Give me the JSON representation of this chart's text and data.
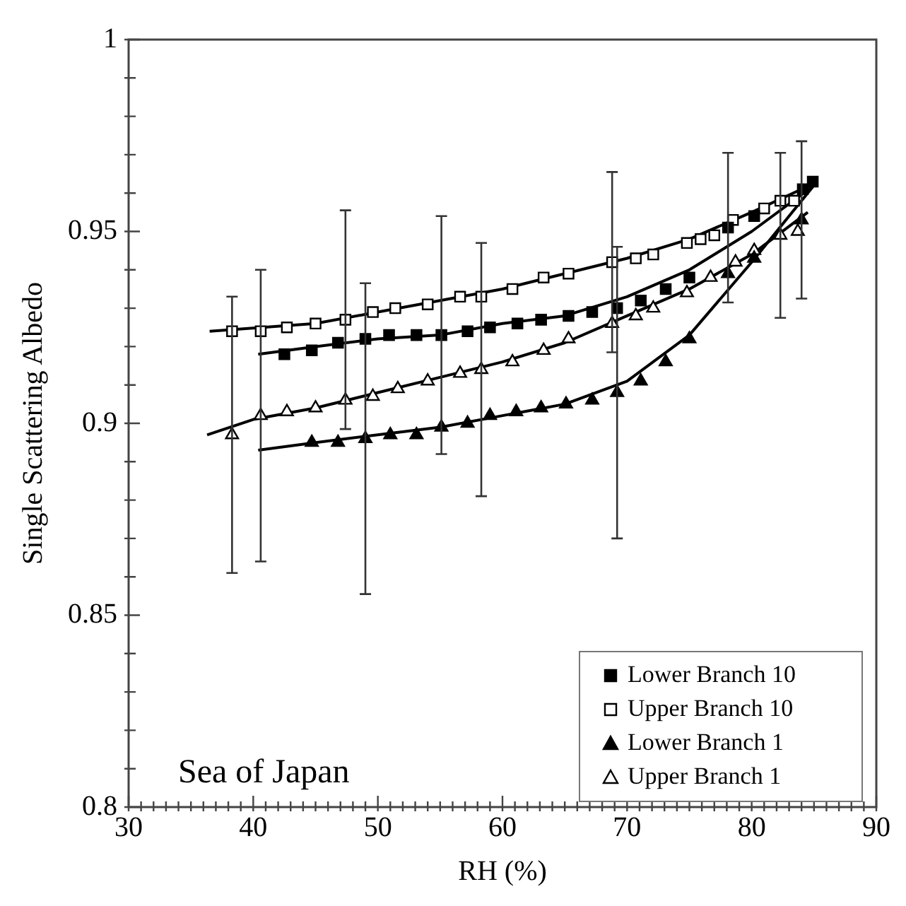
{
  "chart_data": {
    "type": "scatter",
    "xlabel": "RH (%)",
    "ylabel": "Single Scattering Albedo",
    "annotations": [
      "Sea of Japan"
    ],
    "xlim": [
      30,
      90
    ],
    "ylim": [
      0.8,
      1
    ],
    "xticks": [
      30,
      {
        "value": 31,
        "label": null
      },
      {
        "value": 32,
        "label": null
      },
      {
        "value": 33,
        "label": null
      },
      {
        "value": 34,
        "label": null
      },
      {
        "value": 35,
        "label": null
      },
      {
        "value": 36,
        "label": null
      },
      {
        "value": 37,
        "label": null
      },
      {
        "value": 38,
        "label": null
      },
      {
        "value": 39,
        "label": null
      },
      40,
      {
        "value": 41,
        "label": null
      },
      {
        "value": 42,
        "label": null
      },
      {
        "value": 43,
        "label": null
      },
      {
        "value": 44,
        "label": null
      },
      {
        "value": 45,
        "label": null
      },
      {
        "value": 46,
        "label": null
      },
      {
        "value": 47,
        "label": null
      },
      {
        "value": 48,
        "label": null
      },
      {
        "value": 49,
        "label": null
      },
      50,
      {
        "value": 51,
        "label": null
      },
      {
        "value": 52,
        "label": null
      },
      {
        "value": 53,
        "label": null
      },
      {
        "value": 54,
        "label": null
      },
      {
        "value": 55,
        "label": null
      },
      {
        "value": 56,
        "label": null
      },
      {
        "value": 57,
        "label": null
      },
      {
        "value": 58,
        "label": null
      },
      {
        "value": 59,
        "label": null
      },
      60,
      {
        "value": 61,
        "label": null
      },
      {
        "value": 62,
        "label": null
      },
      {
        "value": 63,
        "label": null
      },
      {
        "value": 64,
        "label": null
      },
      {
        "value": 65,
        "label": null
      },
      {
        "value": 66,
        "label": null
      },
      {
        "value": 67,
        "label": null
      },
      {
        "value": 68,
        "label": null
      },
      {
        "value": 69,
        "label": null
      },
      70,
      {
        "value": 71,
        "label": null
      },
      {
        "value": 72,
        "label": null
      },
      {
        "value": 73,
        "label": null
      },
      {
        "value": 74,
        "label": null
      },
      {
        "value": 75,
        "label": null
      },
      {
        "value": 76,
        "label": null
      },
      {
        "value": 77,
        "label": null
      },
      {
        "value": 78,
        "label": null
      },
      {
        "value": 79,
        "label": null
      },
      80,
      {
        "value": 81,
        "label": null
      },
      {
        "value": 82,
        "label": null
      },
      {
        "value": 83,
        "label": null
      },
      {
        "value": 84,
        "label": null
      },
      {
        "value": 85,
        "label": null
      },
      {
        "value": 86,
        "label": null
      },
      {
        "value": 87,
        "label": null
      },
      {
        "value": 88,
        "label": null
      },
      {
        "value": 89,
        "label": null
      },
      90
    ],
    "yticks": [
      0.8,
      {
        "value": 0.81,
        "label": null
      },
      {
        "value": 0.82,
        "label": null
      },
      {
        "value": 0.83,
        "label": null
      },
      {
        "value": 0.84,
        "label": null
      },
      0.85,
      {
        "value": 0.86,
        "label": null
      },
      {
        "value": 0.87,
        "label": null
      },
      {
        "value": 0.88,
        "label": null
      },
      {
        "value": 0.89,
        "label": null
      },
      0.9,
      {
        "value": 0.91,
        "label": null
      },
      {
        "value": 0.92,
        "label": null
      },
      {
        "value": 0.93,
        "label": null
      },
      {
        "value": 0.94,
        "label": null
      },
      0.95,
      {
        "value": 0.96,
        "label": null
      },
      {
        "value": 0.97,
        "label": null
      },
      {
        "value": 0.98,
        "label": null
      },
      {
        "value": 0.99,
        "label": null
      },
      1
    ],
    "grid": false,
    "legend": "bottom right",
    "series": [
      {
        "name": "Lower Branch 10",
        "color": "#000000",
        "marker": "square",
        "x": [
          42.5,
          44.7,
          46.8,
          49.0,
          50.9,
          53.1,
          55.1,
          57.2,
          59.0,
          61.2,
          63.1,
          65.3,
          67.2,
          69.2,
          71.1,
          73.1,
          75.0,
          78.1,
          80.2,
          84.1,
          84.9
        ],
        "values": [
          0.918,
          0.919,
          0.921,
          0.922,
          0.923,
          0.923,
          0.923,
          0.924,
          0.925,
          0.926,
          0.927,
          0.928,
          0.929,
          0.93,
          0.932,
          0.935,
          0.938,
          0.951,
          0.954,
          0.961,
          0.963
        ],
        "errors": [
          null,
          null,
          null,
          null,
          null,
          null,
          0.031,
          null,
          null,
          null,
          null,
          null,
          null,
          null,
          null,
          null,
          null,
          0.0195,
          null,
          null,
          null
        ]
      },
      {
        "name": "Upper Branch 10",
        "color": "#ffffff",
        "marker": "square",
        "x": [
          38.3,
          40.6,
          42.7,
          45.0,
          47.4,
          49.6,
          51.4,
          54.0,
          56.6,
          58.3,
          60.8,
          63.3,
          65.3,
          68.8,
          70.7,
          72.1,
          74.8,
          75.9,
          77.0,
          78.5,
          81.0,
          82.3,
          83.4
        ],
        "values": [
          0.924,
          0.924,
          0.925,
          0.926,
          0.927,
          0.929,
          0.93,
          0.931,
          0.933,
          0.933,
          0.935,
          0.938,
          0.939,
          0.942,
          0.943,
          0.944,
          0.947,
          0.948,
          0.949,
          0.953,
          0.956,
          0.958,
          0.958
        ],
        "errors": [
          null,
          null,
          null,
          null,
          0.0285,
          null,
          null,
          null,
          null,
          null,
          null,
          null,
          null,
          0.0235,
          null,
          null,
          null,
          null,
          null,
          null,
          null,
          null,
          null
        ]
      },
      {
        "name": "Lower Branch 1",
        "color": "#000000",
        "marker": "triangle",
        "x": [
          44.7,
          46.8,
          49.0,
          51.0,
          53.1,
          55.1,
          57.2,
          59.0,
          61.1,
          63.1,
          65.1,
          67.2,
          69.2,
          71.1,
          73.1,
          75.0,
          78.1,
          80.2,
          84.0
        ],
        "values": [
          0.895,
          0.895,
          0.896,
          0.897,
          0.897,
          0.899,
          0.9,
          0.902,
          0.903,
          0.904,
          0.905,
          0.906,
          0.908,
          0.911,
          0.916,
          0.922,
          0.939,
          0.943,
          0.953
        ],
        "errors": [
          null,
          null,
          0.0405,
          null,
          null,
          null,
          null,
          null,
          null,
          null,
          null,
          null,
          0.038,
          null,
          null,
          null,
          null,
          null,
          0.0205
        ]
      },
      {
        "name": "Upper Branch 1",
        "color": "#ffffff",
        "marker": "triangle",
        "x": [
          38.3,
          40.6,
          42.7,
          45.0,
          47.4,
          49.6,
          51.6,
          54.0,
          56.6,
          58.3,
          60.8,
          63.3,
          65.3,
          68.8,
          70.7,
          72.1,
          74.8,
          76.7,
          78.7,
          80.2,
          82.3,
          83.7
        ],
        "values": [
          0.897,
          0.902,
          0.903,
          0.904,
          0.906,
          0.907,
          0.909,
          0.911,
          0.913,
          0.914,
          0.916,
          0.919,
          0.922,
          0.926,
          0.928,
          0.93,
          0.934,
          0.938,
          0.942,
          0.945,
          0.949,
          0.95
        ],
        "errors": [
          0.036,
          0.038,
          null,
          null,
          null,
          null,
          null,
          null,
          null,
          0.033,
          null,
          null,
          null,
          null,
          null,
          null,
          null,
          null,
          null,
          null,
          0.0215,
          null
        ]
      },
      {
        "type": "line",
        "color": "#000000",
        "marker": "none",
        "line_style": "solid",
        "x": [
          36.5,
          45,
          50,
          55,
          60,
          65,
          70,
          75,
          80,
          84
        ],
        "values": [
          0.924,
          0.926,
          0.929,
          0.932,
          0.935,
          0.939,
          0.943,
          0.948,
          0.955,
          0.961
        ]
      },
      {
        "type": "line",
        "color": "#000000",
        "marker": "none",
        "line_style": "solid",
        "x": [
          40.4,
          45,
          50,
          55,
          60,
          65,
          70,
          75,
          80,
          85
        ],
        "values": [
          0.918,
          0.92,
          0.922,
          0.923,
          0.926,
          0.928,
          0.933,
          0.94,
          0.95,
          0.962
        ]
      },
      {
        "type": "line",
        "color": "#000000",
        "marker": "none",
        "line_style": "solid",
        "x": [
          40.4,
          45,
          50,
          55,
          60,
          65,
          70,
          75,
          80,
          85
        ],
        "values": [
          0.893,
          0.895,
          0.897,
          0.899,
          0.902,
          0.905,
          0.911,
          0.923,
          0.942,
          0.962
        ]
      },
      {
        "type": "line",
        "color": "#000000",
        "marker": "none",
        "line_style": "solid",
        "x": [
          36.3,
          40,
          45,
          50,
          55,
          60,
          65,
          70,
          75,
          80,
          84.5
        ],
        "values": [
          0.897,
          0.901,
          0.904,
          0.908,
          0.912,
          0.916,
          0.921,
          0.928,
          0.935,
          0.944,
          0.955
        ]
      }
    ]
  }
}
